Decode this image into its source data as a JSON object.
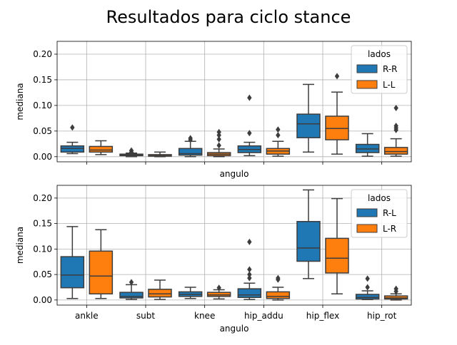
{
  "figure_title": "Resultados para ciclo stance",
  "colors": {
    "series_a": "#1f77b4",
    "series_b": "#ff7f0e",
    "grid": "#b0b0b0",
    "edge": "#3d3d3d"
  },
  "chart_data": [
    {
      "type": "box",
      "xlabel": "angulo",
      "ylabel": "mediana",
      "ylim": [
        -0.01,
        0.225
      ],
      "yticks": [
        0.0,
        0.05,
        0.1,
        0.15,
        0.2
      ],
      "ytick_labels": [
        "0.00",
        "0.05",
        "0.10",
        "0.15",
        "0.20"
      ],
      "show_xtick_labels": false,
      "grid": true,
      "legend": {
        "title": "lados",
        "placement": "top-right"
      },
      "categories": [
        "ankle",
        "subt",
        "knee",
        "hip_addu",
        "hip_flex",
        "hip_rot"
      ],
      "series": [
        {
          "name": "R-R",
          "boxes": [
            {
              "whislo": 0.006,
              "q1": 0.009,
              "med": 0.016,
              "q3": 0.021,
              "whishi": 0.028,
              "fliers": [
                0.057
              ]
            },
            {
              "whislo": 0.0,
              "q1": 0.002,
              "med": 0.003,
              "q3": 0.005,
              "whishi": 0.007,
              "fliers": [
                0.012,
                0.009
              ]
            },
            {
              "whislo": 0.0,
              "q1": 0.003,
              "med": 0.006,
              "q3": 0.016,
              "whishi": 0.03,
              "fliers": [
                0.036,
                0.033
              ]
            },
            {
              "whislo": 0.002,
              "q1": 0.008,
              "med": 0.014,
              "q3": 0.021,
              "whishi": 0.028,
              "fliers": [
                0.046,
                0.115
              ]
            },
            {
              "whislo": 0.009,
              "q1": 0.037,
              "med": 0.064,
              "q3": 0.083,
              "whishi": 0.141,
              "fliers": []
            },
            {
              "whislo": 0.001,
              "q1": 0.008,
              "med": 0.015,
              "q3": 0.024,
              "whishi": 0.045,
              "fliers": []
            }
          ]
        },
        {
          "name": "L-L",
          "boxes": [
            {
              "whislo": 0.004,
              "q1": 0.009,
              "med": 0.013,
              "q3": 0.02,
              "whishi": 0.031,
              "fliers": []
            },
            {
              "whislo": 0.0,
              "q1": 0.001,
              "med": 0.003,
              "q3": 0.004,
              "whishi": 0.009,
              "fliers": []
            },
            {
              "whislo": 0.0,
              "q1": 0.002,
              "med": 0.005,
              "q3": 0.008,
              "whishi": 0.015,
              "fliers": [
                0.022,
                0.034,
                0.048,
                0.042
              ]
            },
            {
              "whislo": 0.001,
              "q1": 0.005,
              "med": 0.011,
              "q3": 0.016,
              "whishi": 0.03,
              "fliers": [
                0.042,
                0.053
              ]
            },
            {
              "whislo": 0.005,
              "q1": 0.033,
              "med": 0.055,
              "q3": 0.079,
              "whishi": 0.126,
              "fliers": [
                0.157
              ]
            },
            {
              "whislo": 0.001,
              "q1": 0.005,
              "med": 0.01,
              "q3": 0.018,
              "whishi": 0.035,
              "fliers": [
                0.052,
                0.056,
                0.06,
                0.095
              ]
            }
          ]
        }
      ]
    },
    {
      "type": "box",
      "xlabel": "angulo",
      "ylabel": "mediana",
      "ylim": [
        -0.01,
        0.225
      ],
      "yticks": [
        0.0,
        0.05,
        0.1,
        0.15,
        0.2
      ],
      "ytick_labels": [
        "0.00",
        "0.05",
        "0.10",
        "0.15",
        "0.20"
      ],
      "show_xtick_labels": true,
      "grid": true,
      "legend": {
        "title": "lados",
        "placement": "top-right"
      },
      "categories": [
        "ankle",
        "subt",
        "knee",
        "hip_addu",
        "hip_flex",
        "hip_rot"
      ],
      "series": [
        {
          "name": "R-L",
          "boxes": [
            {
              "whislo": 0.003,
              "q1": 0.024,
              "med": 0.049,
              "q3": 0.085,
              "whishi": 0.144,
              "fliers": []
            },
            {
              "whislo": 0.001,
              "q1": 0.004,
              "med": 0.007,
              "q3": 0.015,
              "whishi": 0.03,
              "fliers": [
                0.035
              ]
            },
            {
              "whislo": 0.003,
              "q1": 0.007,
              "med": 0.011,
              "q3": 0.016,
              "whishi": 0.025,
              "fliers": []
            },
            {
              "whislo": 0.001,
              "q1": 0.005,
              "med": 0.01,
              "q3": 0.022,
              "whishi": 0.033,
              "fliers": [
                0.043,
                0.05,
                0.06,
                0.114
              ]
            },
            {
              "whislo": 0.042,
              "q1": 0.076,
              "med": 0.102,
              "q3": 0.154,
              "whishi": 0.216,
              "fliers": []
            },
            {
              "whislo": 0.001,
              "q1": 0.002,
              "med": 0.005,
              "q3": 0.011,
              "whishi": 0.018,
              "fliers": [
                0.025,
                0.042
              ]
            }
          ]
        },
        {
          "name": "L-R",
          "boxes": [
            {
              "whislo": 0.003,
              "q1": 0.012,
              "med": 0.047,
              "q3": 0.096,
              "whishi": 0.138,
              "fliers": []
            },
            {
              "whislo": 0.001,
              "q1": 0.006,
              "med": 0.012,
              "q3": 0.021,
              "whishi": 0.039,
              "fliers": []
            },
            {
              "whislo": 0.002,
              "q1": 0.007,
              "med": 0.01,
              "q3": 0.015,
              "whishi": 0.02,
              "fliers": [
                0.024
              ]
            },
            {
              "whislo": 0.0,
              "q1": 0.003,
              "med": 0.007,
              "q3": 0.016,
              "whishi": 0.025,
              "fliers": [
                0.04,
                0.043
              ]
            },
            {
              "whislo": 0.012,
              "q1": 0.053,
              "med": 0.082,
              "q3": 0.121,
              "whishi": 0.199,
              "fliers": []
            },
            {
              "whislo": 0.0,
              "q1": 0.002,
              "med": 0.004,
              "q3": 0.008,
              "whishi": 0.012,
              "fliers": [
                0.017,
                0.022
              ]
            }
          ]
        }
      ]
    }
  ]
}
